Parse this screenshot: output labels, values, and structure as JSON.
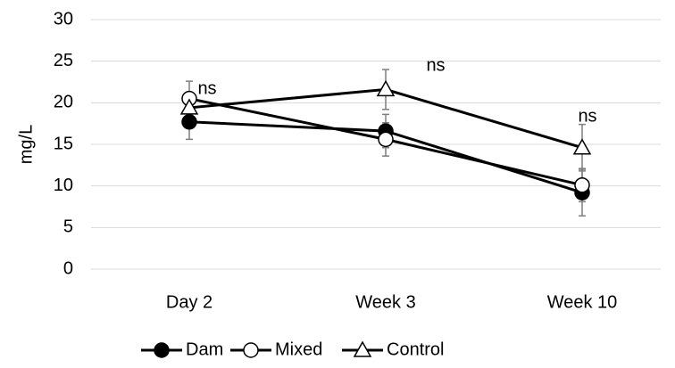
{
  "chart_data": {
    "type": "line",
    "y_label": "mg/L",
    "categories": [
      "Day 2",
      "Week 3",
      "Week 10"
    ],
    "series": [
      {
        "name": "Dam",
        "color": "#000000",
        "marker": "circle",
        "marker_fill": "#000000",
        "values": [
          17.7,
          16.6,
          9.2
        ],
        "errors": [
          2.1,
          2.0,
          2.8
        ]
      },
      {
        "name": "Mixed",
        "color": "#000000",
        "marker": "circle",
        "marker_fill": "#ffffff",
        "values": [
          20.5,
          15.6,
          10.1
        ],
        "errors": [
          2.1,
          2.0,
          2.0
        ]
      },
      {
        "name": "Control",
        "color": "#000000",
        "marker": "triangle",
        "marker_fill": "#ffffff",
        "values": [
          19.4,
          21.6,
          14.6
        ],
        "errors": [
          1.0,
          2.4,
          2.8
        ]
      }
    ],
    "annotations": [
      "ns",
      "ns",
      "ns"
    ],
    "error_color": "#7f7f7f",
    "ylim": [
      0,
      30
    ],
    "yticks": [
      0,
      5,
      10,
      15,
      20,
      25,
      30
    ],
    "grid": true,
    "legend": "bottom"
  }
}
